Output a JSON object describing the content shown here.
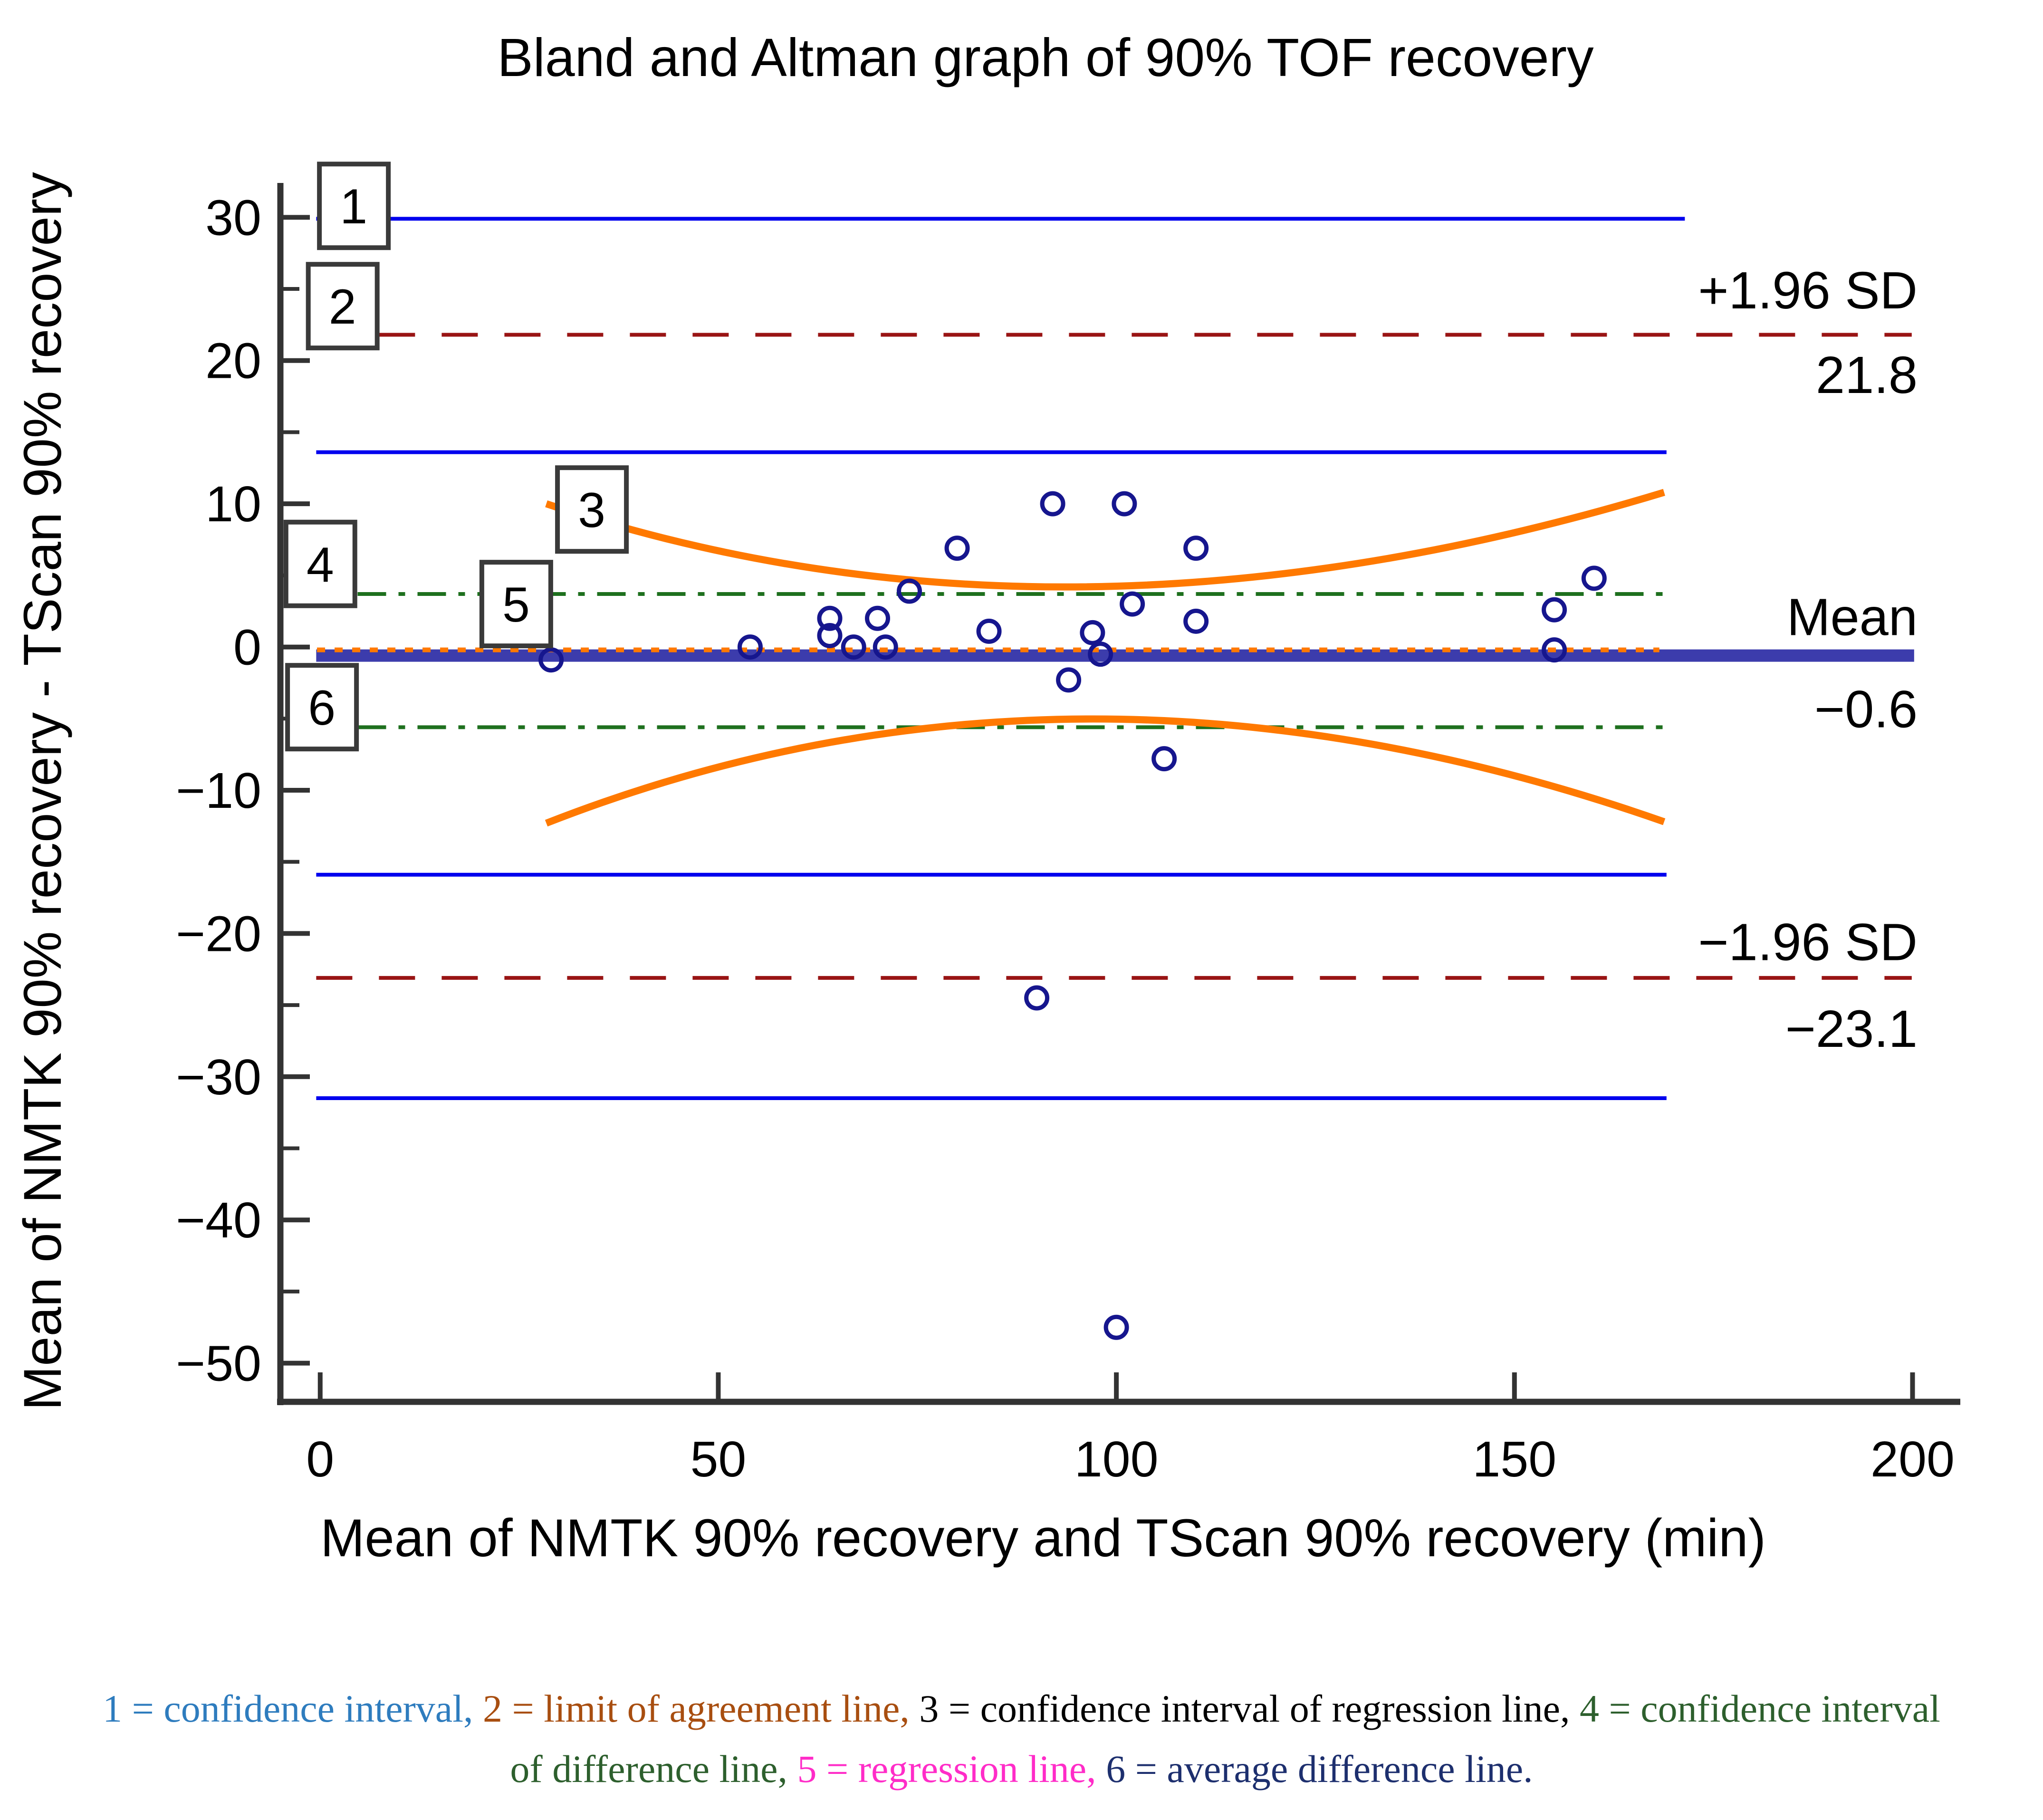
{
  "page": {
    "background": "#ffffff"
  },
  "chart_data": {
    "type": "scatter",
    "title": "Bland and Altman graph of 90% TOF recovery",
    "xlabel": "Mean of NMTK 90% recovery and TScan 90% recovery (min)",
    "ylabel": "Mean of NMTK 90% recovery - TScan 90% recovery",
    "xlim": [
      -5,
      206
    ],
    "ylim": [
      -52.7,
      32.4
    ],
    "x_ticks": [
      0,
      50,
      100,
      150,
      200
    ],
    "y_ticks": [
      30,
      20,
      10,
      0,
      -10,
      -20,
      -30,
      -40,
      -50
    ],
    "y_minor_ticks": [
      25,
      15,
      5,
      -5,
      -15,
      -25,
      -35,
      -45
    ],
    "grid": false,
    "legend": "none",
    "marker": {
      "shape": "open-circle",
      "radius_px": 22,
      "stroke_px": 9,
      "color": "#16168e"
    },
    "points": [
      [
        29,
        -0.9
      ],
      [
        54,
        0
      ],
      [
        64,
        2
      ],
      [
        64,
        0.8
      ],
      [
        67,
        0
      ],
      [
        70,
        2
      ],
      [
        71,
        0
      ],
      [
        74,
        3.9
      ],
      [
        80,
        6.9
      ],
      [
        84,
        1.1
      ],
      [
        90,
        -24.5
      ],
      [
        92,
        10
      ],
      [
        94,
        -2.3
      ],
      [
        97,
        1
      ],
      [
        98,
        -0.5
      ],
      [
        100,
        -47.5
      ],
      [
        101,
        10
      ],
      [
        102,
        3
      ],
      [
        106,
        -7.8
      ],
      [
        110,
        6.9
      ],
      [
        110,
        1.8
      ],
      [
        155,
        2.6
      ],
      [
        155,
        -0.2
      ],
      [
        160,
        4.8
      ]
    ],
    "lines": [
      {
        "name": "confidence-interval-upper-of-upper-loa",
        "value": 29.9,
        "x1": -0.5,
        "x2": 171.4,
        "style": "solid",
        "color": "#0000ee",
        "width": 8
      },
      {
        "name": "limit-of-agreement-upper",
        "value": 21.8,
        "x1": -0.5,
        "x2": 199.9,
        "style": "dashed",
        "color": "#991414",
        "width": 8
      },
      {
        "name": "confidence-interval-lower-of-upper-loa",
        "value": 13.6,
        "x1": -0.5,
        "x2": 169.1,
        "style": "solid",
        "color": "#0000ee",
        "width": 8
      },
      {
        "name": "confidence-interval-of-difference-upper",
        "value": 3.7,
        "x1": 4.7,
        "x2": 168.8,
        "style": "dashdot",
        "color": "#1e701e",
        "width": 8
      },
      {
        "name": "average-difference-line",
        "value": -0.6,
        "x1": -0.5,
        "x2": 200.2,
        "style": "solid",
        "color": "#3c3cac",
        "width": 26
      },
      {
        "name": "regression-line",
        "value": -0.2,
        "x1": -0.4,
        "x2": 168.2,
        "style": "dotted",
        "color": "#ff7900",
        "width": 10
      },
      {
        "name": "confidence-interval-of-difference-lower",
        "value": -5.6,
        "x1": 4.7,
        "x2": 168.8,
        "style": "dashdot",
        "color": "#1e701e",
        "width": 8
      },
      {
        "name": "confidence-interval-upper-of-lower-loa",
        "value": -15.9,
        "x1": -0.5,
        "x2": 169.1,
        "style": "solid",
        "color": "#0000ee",
        "width": 8
      },
      {
        "name": "limit-of-agreement-lower",
        "value": -23.1,
        "x1": -0.5,
        "x2": 199.9,
        "style": "dashed",
        "color": "#991414",
        "width": 8
      },
      {
        "name": "confidence-interval-lower-of-lower-loa",
        "value": -31.5,
        "x1": -0.5,
        "x2": 169.1,
        "style": "solid",
        "color": "#0000ee",
        "width": 8
      }
    ],
    "curves": [
      {
        "name": "regression-ci-upper",
        "color": "#ff7900",
        "width": 15,
        "p0": [
          28.4,
          10.0
        ],
        "control": [
          93,
          -2.0
        ],
        "p2": [
          168.8,
          10.8
        ]
      },
      {
        "name": "regression-ci-lower",
        "color": "#ff7900",
        "width": 15,
        "p0": [
          28.4,
          -12.3
        ],
        "control": [
          95,
          2.2
        ],
        "p2": [
          168.8,
          -12.2
        ]
      }
    ],
    "side_labels": [
      {
        "text": "+1.96 SD",
        "y": 24.9
      },
      {
        "text": "21.8",
        "y": 19.0
      },
      {
        "text": "Mean",
        "y": 2.1
      },
      {
        "text": "−0.6",
        "y": -4.35
      },
      {
        "text": "−1.96 SD",
        "y": -20.6
      },
      {
        "text": "−23.1",
        "y": -26.65
      }
    ],
    "number_boxes": [
      {
        "label": "1",
        "cx": 4.2,
        "cy": 30.8
      },
      {
        "label": "2",
        "cx": 2.8,
        "cy": 23.8
      },
      {
        "label": "3",
        "cx": 34.1,
        "cy": 9.6
      },
      {
        "label": "4",
        "cx": 0.0,
        "cy": 5.8
      },
      {
        "label": "5",
        "cx": 24.6,
        "cy": 3.0
      },
      {
        "label": "6",
        "cx": 0.2,
        "cy": -4.2
      }
    ],
    "colors": {
      "axis": "#333333",
      "ci_blue": "#0000ee",
      "loa_dark_red": "#991414",
      "regression_ci_orange": "#ff7900",
      "diff_ci_green": "#1e701e",
      "mean_line_indigo": "#3c3cac",
      "marker_navy": "#16168e"
    }
  },
  "caption": {
    "lines": [
      {
        "segments": [
          {
            "text": "1 = confidence interval, ",
            "color": "#2e7cbe"
          },
          {
            "text": "2 = limit of agreement line, ",
            "color": "#a84e10"
          },
          {
            "text": "3 = confidence interval of regression line, ",
            "color": "#000000"
          },
          {
            "text": "4 = confidence interval",
            "color": "#2d5f2d"
          }
        ]
      },
      {
        "segments": [
          {
            "text": "of difference line, ",
            "color": "#2d5f2d"
          },
          {
            "text": "5 = regression line, ",
            "color": "#ff2cc8"
          },
          {
            "text": "6 = average difference line.",
            "color": "#1d2f6e"
          }
        ]
      }
    ]
  }
}
